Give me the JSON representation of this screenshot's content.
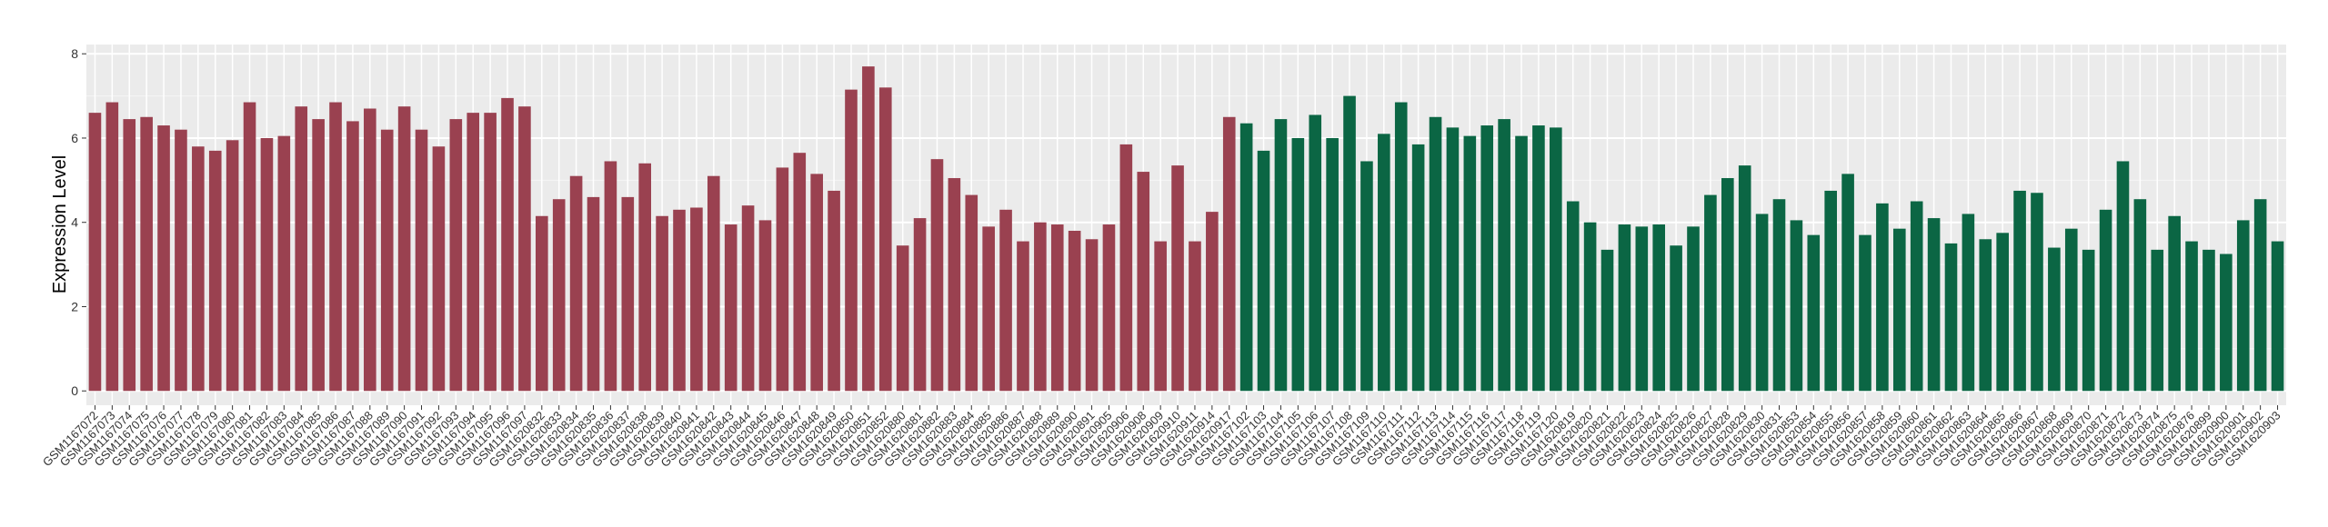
{
  "chart_data": {
    "type": "bar",
    "y_label": "Expression Level",
    "categories": [
      "GSM1167072",
      "GSM1167073",
      "GSM1167074",
      "GSM1167075",
      "GSM1167076",
      "GSM1167077",
      "GSM1167078",
      "GSM1167079",
      "GSM1167080",
      "GSM1167081",
      "GSM1167082",
      "GSM1167083",
      "GSM1167084",
      "GSM1167085",
      "GSM1167086",
      "GSM1167087",
      "GSM1167088",
      "GSM1167089",
      "GSM1167090",
      "GSM1167091",
      "GSM1167092",
      "GSM1167093",
      "GSM1167094",
      "GSM1167095",
      "GSM1167096",
      "GSM1167097",
      "GSM1620832",
      "GSM1620833",
      "GSM1620834",
      "GSM1620835",
      "GSM1620836",
      "GSM1620837",
      "GSM1620838",
      "GSM1620839",
      "GSM1620840",
      "GSM1620841",
      "GSM1620842",
      "GSM1620843",
      "GSM1620844",
      "GSM1620845",
      "GSM1620846",
      "GSM1620847",
      "GSM1620848",
      "GSM1620849",
      "GSM1620850",
      "GSM1620851",
      "GSM1620852",
      "GSM1620880",
      "GSM1620881",
      "GSM1620882",
      "GSM1620883",
      "GSM1620884",
      "GSM1620885",
      "GSM1620886",
      "GSM1620887",
      "GSM1620888",
      "GSM1620889",
      "GSM1620890",
      "GSM1620891",
      "GSM1620905",
      "GSM1620906",
      "GSM1620908",
      "GSM1620909",
      "GSM1620910",
      "GSM1620911",
      "GSM1620914",
      "GSM1620917",
      "GSM1167102",
      "GSM1167103",
      "GSM1167104",
      "GSM1167105",
      "GSM1167106",
      "GSM1167107",
      "GSM1167108",
      "GSM1167109",
      "GSM1167110",
      "GSM1167111",
      "GSM1167112",
      "GSM1167113",
      "GSM1167114",
      "GSM1167115",
      "GSM1167116",
      "GSM1167117",
      "GSM1167118",
      "GSM1167119",
      "GSM1167120",
      "GSM1620819",
      "GSM1620820",
      "GSM1620821",
      "GSM1620822",
      "GSM1620823",
      "GSM1620824",
      "GSM1620825",
      "GSM1620826",
      "GSM1620827",
      "GSM1620828",
      "GSM1620829",
      "GSM1620830",
      "GSM1620831",
      "GSM1620853",
      "GSM1620854",
      "GSM1620855",
      "GSM1620856",
      "GSM1620857",
      "GSM1620858",
      "GSM1620859",
      "GSM1620860",
      "GSM1620861",
      "GSM1620862",
      "GSM1620863",
      "GSM1620864",
      "GSM1620865",
      "GSM1620866",
      "GSM1620867",
      "GSM1620868",
      "GSM1620869",
      "GSM1620870",
      "GSM1620871",
      "GSM1620872",
      "GSM1620873",
      "GSM1620874",
      "GSM1620875",
      "GSM1620876",
      "GSM1620899",
      "GSM1620900",
      "GSM1620901",
      "GSM1620902",
      "GSM1620903"
    ],
    "series": [
      {
        "color": "#9a4150",
        "values": [
          6.6,
          6.85,
          6.45,
          6.5,
          6.3,
          6.2,
          5.8,
          5.7,
          5.95,
          6.85,
          6.0,
          6.05,
          6.75,
          6.45,
          6.85,
          6.4,
          6.7,
          6.2,
          6.75,
          6.2,
          5.8,
          6.45,
          6.6,
          6.6,
          6.95,
          6.75,
          4.15,
          4.55,
          5.1,
          4.6,
          5.45,
          4.6,
          5.4,
          4.15,
          4.3,
          4.35,
          5.1,
          3.95,
          4.4,
          4.05,
          5.3,
          5.65,
          5.15,
          4.75,
          7.15,
          7.7,
          7.2,
          3.45,
          4.1,
          5.5,
          5.05,
          4.65,
          3.9,
          4.3,
          3.55,
          4.0,
          3.95,
          3.8,
          3.6,
          3.95,
          5.85,
          5.2,
          3.55,
          5.35,
          3.55,
          4.25,
          6.5,
          null,
          null,
          null,
          null,
          null,
          null,
          null,
          null,
          null,
          null,
          null,
          null,
          null,
          null,
          null,
          null,
          null,
          null,
          null,
          null,
          null,
          null,
          null,
          null,
          null,
          null,
          null,
          null,
          null,
          null,
          null,
          null,
          null,
          null,
          null,
          null,
          null,
          null,
          null,
          null,
          null,
          null,
          null,
          null,
          null,
          null,
          null,
          null,
          null,
          null,
          null,
          null,
          null,
          null,
          null,
          null,
          null,
          null,
          null,
          null,
          null
        ]
      },
      {
        "color": "#0b6644",
        "values": [
          null,
          null,
          null,
          null,
          null,
          null,
          null,
          null,
          null,
          null,
          null,
          null,
          null,
          null,
          null,
          null,
          null,
          null,
          null,
          null,
          null,
          null,
          null,
          null,
          null,
          null,
          null,
          null,
          null,
          null,
          null,
          null,
          null,
          null,
          null,
          null,
          null,
          null,
          null,
          null,
          null,
          null,
          null,
          null,
          null,
          null,
          null,
          null,
          null,
          null,
          null,
          null,
          null,
          null,
          null,
          null,
          null,
          null,
          null,
          null,
          null,
          null,
          null,
          null,
          null,
          null,
          null,
          6.35,
          5.7,
          6.45,
          6.0,
          6.55,
          6.0,
          7.0,
          5.45,
          6.1,
          6.85,
          5.85,
          6.5,
          6.25,
          6.05,
          6.3,
          6.45,
          6.05,
          6.3,
          6.25,
          4.5,
          4.0,
          3.35,
          3.95,
          3.9,
          3.95,
          3.45,
          3.9,
          4.65,
          5.05,
          5.35,
          4.2,
          4.55,
          4.05,
          3.7,
          4.75,
          5.15,
          3.7,
          4.45,
          3.85,
          4.5,
          4.1,
          3.5,
          4.2,
          3.6,
          3.75,
          4.75,
          4.7,
          3.4,
          3.85,
          3.35,
          4.3,
          5.45,
          4.55,
          3.35,
          4.15,
          3.55,
          3.35,
          3.25,
          4.05,
          4.55,
          3.55
        ]
      }
    ],
    "ylim": [
      -0.34,
      8.22
    ],
    "yticks": [
      0,
      2,
      4,
      6,
      8
    ],
    "grid": true
  }
}
